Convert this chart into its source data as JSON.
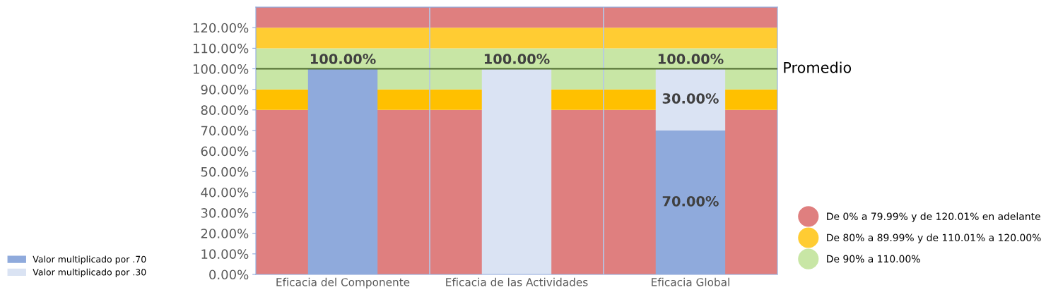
{
  "chart_data": {
    "type": "bar",
    "stacked": true,
    "categories": [
      "Eficacia del Componente",
      "Eficacia de las Actividades",
      "Eficacia Global"
    ],
    "series": [
      {
        "name": "Valor multiplicado por .70",
        "color": "#8faadc",
        "values": [
          100,
          null,
          70
        ],
        "value_labels": [
          null,
          null,
          "70.00%"
        ]
      },
      {
        "name": "Valor multiplicado por .30",
        "color": "#dae3f3",
        "values": [
          null,
          100,
          30
        ],
        "value_labels": [
          null,
          null,
          "30.00%"
        ]
      }
    ],
    "totals": [
      "100.00%",
      "100.00%",
      "100.00%"
    ],
    "ylim": [
      0,
      130
    ],
    "yticks": [
      {
        "value": 0,
        "label": "0.00%"
      },
      {
        "value": 10,
        "label": "10.00%"
      },
      {
        "value": 20,
        "label": "20.00%"
      },
      {
        "value": 30,
        "label": "30.00%"
      },
      {
        "value": 40,
        "label": "40.00%"
      },
      {
        "value": 50,
        "label": "50.00%"
      },
      {
        "value": 60,
        "label": "60.00%"
      },
      {
        "value": 70,
        "label": "70.00%"
      },
      {
        "value": 80,
        "label": "80.00%"
      },
      {
        "value": 90,
        "label": "90.00%"
      },
      {
        "value": 100,
        "label": "100.00%"
      },
      {
        "value": 110,
        "label": "110.00%"
      },
      {
        "value": 120,
        "label": "120.00%"
      }
    ],
    "ref_lines": [
      {
        "axis": "y",
        "value": 100,
        "label": "Promedio",
        "color": "#4e6b2e",
        "line_style": "solid"
      }
    ],
    "bands": [
      {
        "axis": "y",
        "from": 0,
        "to": 80,
        "color": "#df7f7f"
      },
      {
        "axis": "y",
        "from": 80,
        "to": 90,
        "color": "#ffc000"
      },
      {
        "axis": "y",
        "from": 90,
        "to": 110,
        "color": "#c8e6a5",
        "label": "De 90% a 110.00%"
      },
      {
        "axis": "y",
        "from": 110,
        "to": 120,
        "color": "#ffcc33",
        "label": "De 80% a 89.99% y de 110.01% a 120.00%"
      },
      {
        "axis": "y",
        "from": 120,
        "to": 130,
        "color": "#df7f7f",
        "label": "De 0% a 79.99% y de 120.01% en adelante"
      }
    ],
    "legend": "bottom left",
    "grid": false
  }
}
